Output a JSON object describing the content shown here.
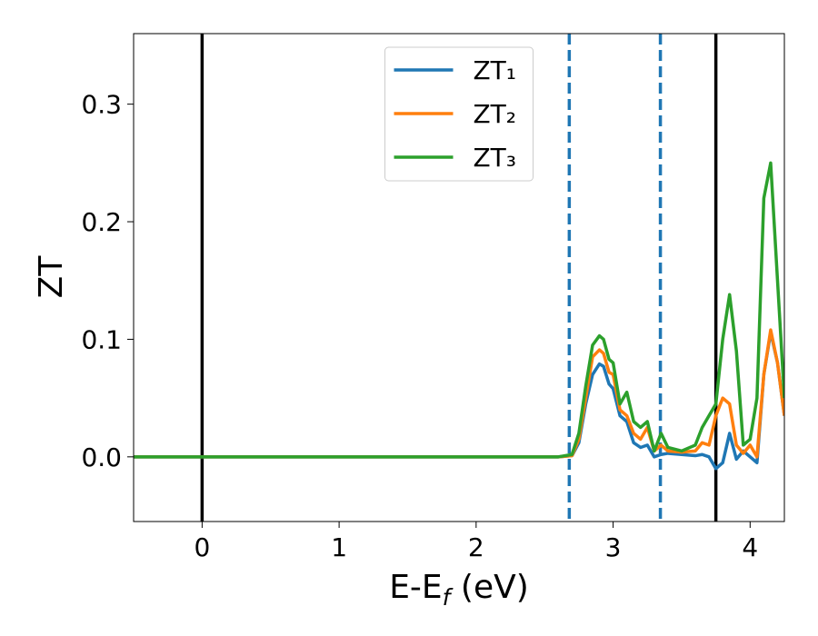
{
  "chart_data": {
    "type": "line",
    "xlabel": [
      "E-E",
      "f",
      " (eV)"
    ],
    "ylabel": "ZT",
    "xlim": [
      -0.5,
      4.25
    ],
    "ylim": [
      -0.055,
      0.36
    ],
    "xticks": [
      0,
      1,
      2,
      3,
      4
    ],
    "yticks": [
      {
        "value": 0,
        "label": "0.0"
      },
      0.1,
      0.2,
      0.3
    ],
    "legend": "upper center",
    "vlines": [
      {
        "x": 0,
        "color": "#000000",
        "style": "solid"
      },
      {
        "x": 3.75,
        "color": "#000000",
        "style": "solid"
      },
      {
        "x": 2.68,
        "color": "#1f77b4",
        "style": "dashed"
      },
      {
        "x": 3.345,
        "color": "#1f77b4",
        "style": "dashed"
      }
    ],
    "x": [
      -0.5,
      2.6,
      2.7,
      2.75,
      2.8,
      2.85,
      2.9,
      2.93,
      2.97,
      3.0,
      3.05,
      3.1,
      3.15,
      3.2,
      3.25,
      3.3,
      3.35,
      3.4,
      3.5,
      3.6,
      3.65,
      3.7,
      3.75,
      3.8,
      3.85,
      3.9,
      3.95,
      4.0,
      4.05,
      4.1,
      4.15,
      4.2,
      4.25
    ],
    "series": [
      {
        "name": "ZT₁",
        "color": "#1f77b4",
        "values": [
          0,
          0,
          0.001,
          0.012,
          0.045,
          0.07,
          0.079,
          0.077,
          0.062,
          0.058,
          0.035,
          0.03,
          0.012,
          0.008,
          0.01,
          0.0,
          0.002,
          0.003,
          0.002,
          0.001,
          0.002,
          0.0,
          -0.01,
          -0.005,
          0.02,
          -0.002,
          0.005,
          0.0,
          -0.005,
          0.07,
          0.106,
          0.08,
          0.035
        ]
      },
      {
        "name": "ZT₂",
        "color": "#ff7f0e",
        "values": [
          0,
          0,
          0.001,
          0.015,
          0.05,
          0.085,
          0.091,
          0.088,
          0.072,
          0.07,
          0.04,
          0.035,
          0.02,
          0.015,
          0.025,
          0.005,
          0.01,
          0.005,
          0.004,
          0.005,
          0.012,
          0.01,
          0.035,
          0.05,
          0.045,
          0.01,
          0.003,
          0.01,
          0.0,
          0.07,
          0.108,
          0.08,
          0.035
        ]
      },
      {
        "name": "ZT₃",
        "color": "#2ca02c",
        "values": [
          0,
          0,
          0.002,
          0.02,
          0.06,
          0.095,
          0.103,
          0.1,
          0.083,
          0.08,
          0.045,
          0.055,
          0.03,
          0.025,
          0.03,
          0.005,
          0.02,
          0.008,
          0.005,
          0.01,
          0.025,
          0.035,
          0.045,
          0.1,
          0.138,
          0.09,
          0.01,
          0.015,
          0.05,
          0.22,
          0.25,
          0.15,
          0.05
        ]
      }
    ]
  }
}
